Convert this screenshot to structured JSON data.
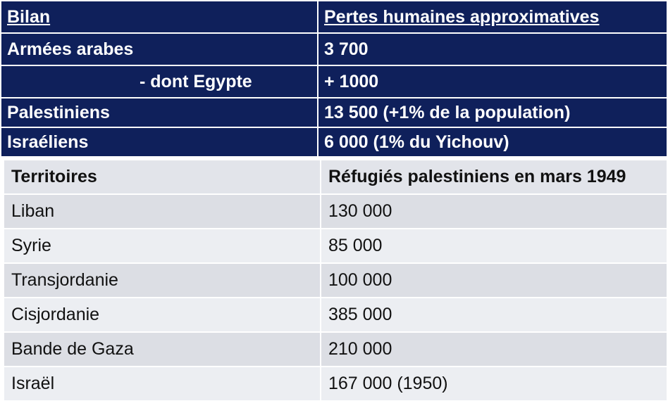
{
  "losses_table": {
    "header": [
      "Bilan",
      "Pertes humaines approximatives"
    ],
    "rows": [
      [
        "Armées arabes",
        "3 700"
      ],
      [
        "- dont Egypte",
        "+ 1000"
      ],
      [
        "Palestiniens",
        "13 500 (+1% de la population)"
      ],
      [
        "Israéliens",
        "6 000 (1% du Yichouv)"
      ]
    ]
  },
  "refugees_table": {
    "header": [
      "Territoires",
      "Réfugiés palestiniens en mars 1949"
    ],
    "rows": [
      [
        "Liban",
        "130 000"
      ],
      [
        "Syrie",
        "85 000"
      ],
      [
        "Transjordanie",
        "100 000"
      ],
      [
        "Cisjordanie",
        "385 000"
      ],
      [
        "Bande de Gaza",
        "210 000"
      ],
      [
        "Israël",
        "167 000 (1950)"
      ]
    ]
  }
}
